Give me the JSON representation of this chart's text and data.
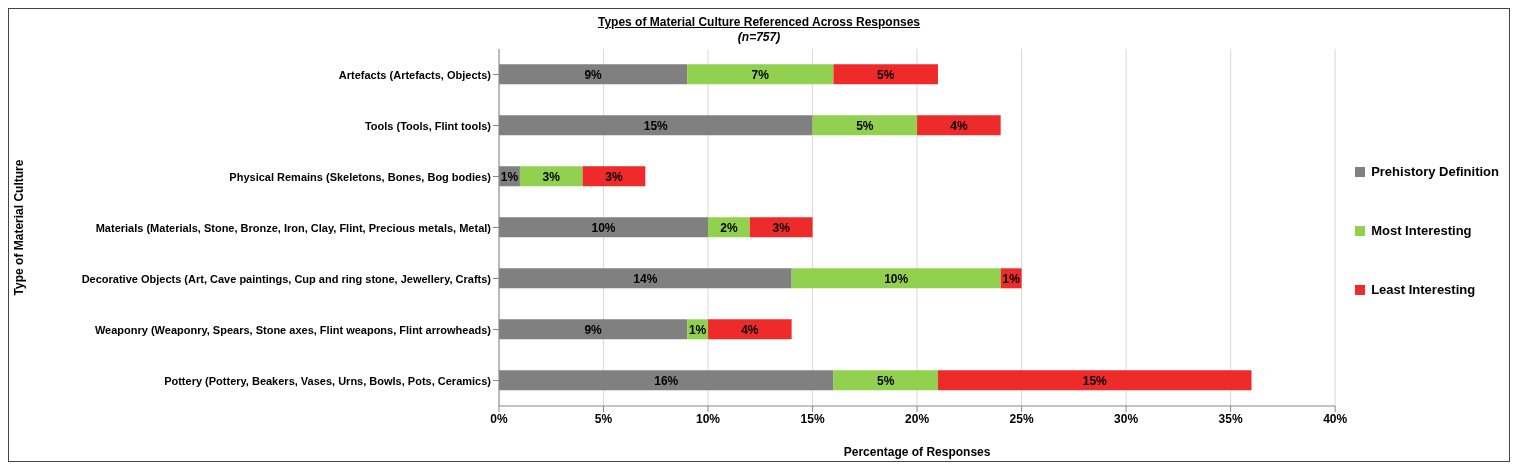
{
  "chart_data": {
    "type": "bar",
    "orientation": "horizontal",
    "stacked": true,
    "title": "Types of Material Culture Referenced Across Responses",
    "subtitle": "(n=757)",
    "xlabel": "Percentage of Responses",
    "ylabel": "Type of Material Culture",
    "categories": [
      "Artefacts (Artefacts, Objects)",
      "Tools (Tools, Flint tools)",
      "Physical Remains (Skeletons, Bones, Bog bodies)",
      "Materials (Materials, Stone, Bronze, Iron, Clay, Flint, Precious metals, Metal)",
      "Decorative Objects (Art, Cave paintings, Cup and ring stone, Jewellery, Crafts)",
      "Weaponry (Weaponry, Spears, Stone axes, Flint weapons, Flint arrowheads)",
      "Pottery (Pottery, Beakers, Vases, Urns, Bowls, Pots, Ceramics)"
    ],
    "series": [
      {
        "name": "Prehistory Definition",
        "color": "#808080",
        "values": [
          9,
          15,
          1,
          10,
          14,
          9,
          16
        ],
        "value_labels": [
          "9%",
          "15%",
          "1%",
          "10%",
          "14%",
          "9%",
          "16%"
        ]
      },
      {
        "name": "Most Interesting",
        "color": "#92d050",
        "values": [
          7,
          5,
          3,
          2,
          10,
          1,
          5
        ],
        "value_labels": [
          "7%",
          "5%",
          "3%",
          "2%",
          "10%",
          "1%",
          "5%"
        ]
      },
      {
        "name": "Least Interesting",
        "color": "#ee2a2a",
        "values": [
          5,
          4,
          3,
          3,
          1,
          4,
          15
        ],
        "value_labels": [
          "5%",
          "4%",
          "3%",
          "3%",
          "1%",
          "4%",
          "15%"
        ]
      }
    ],
    "xlim": [
      0,
      40
    ],
    "xticks": [
      {
        "value": 0,
        "label": "0%"
      },
      {
        "value": 5,
        "label": "5%"
      },
      {
        "value": 10,
        "label": "10%"
      },
      {
        "value": 15,
        "label": "15%"
      },
      {
        "value": 20,
        "label": "20%"
      },
      {
        "value": 25,
        "label": "25%"
      },
      {
        "value": 30,
        "label": "30%"
      },
      {
        "value": 35,
        "label": "35%"
      },
      {
        "value": 40,
        "label": "40%"
      }
    ],
    "grid": "x",
    "legend": "right"
  }
}
